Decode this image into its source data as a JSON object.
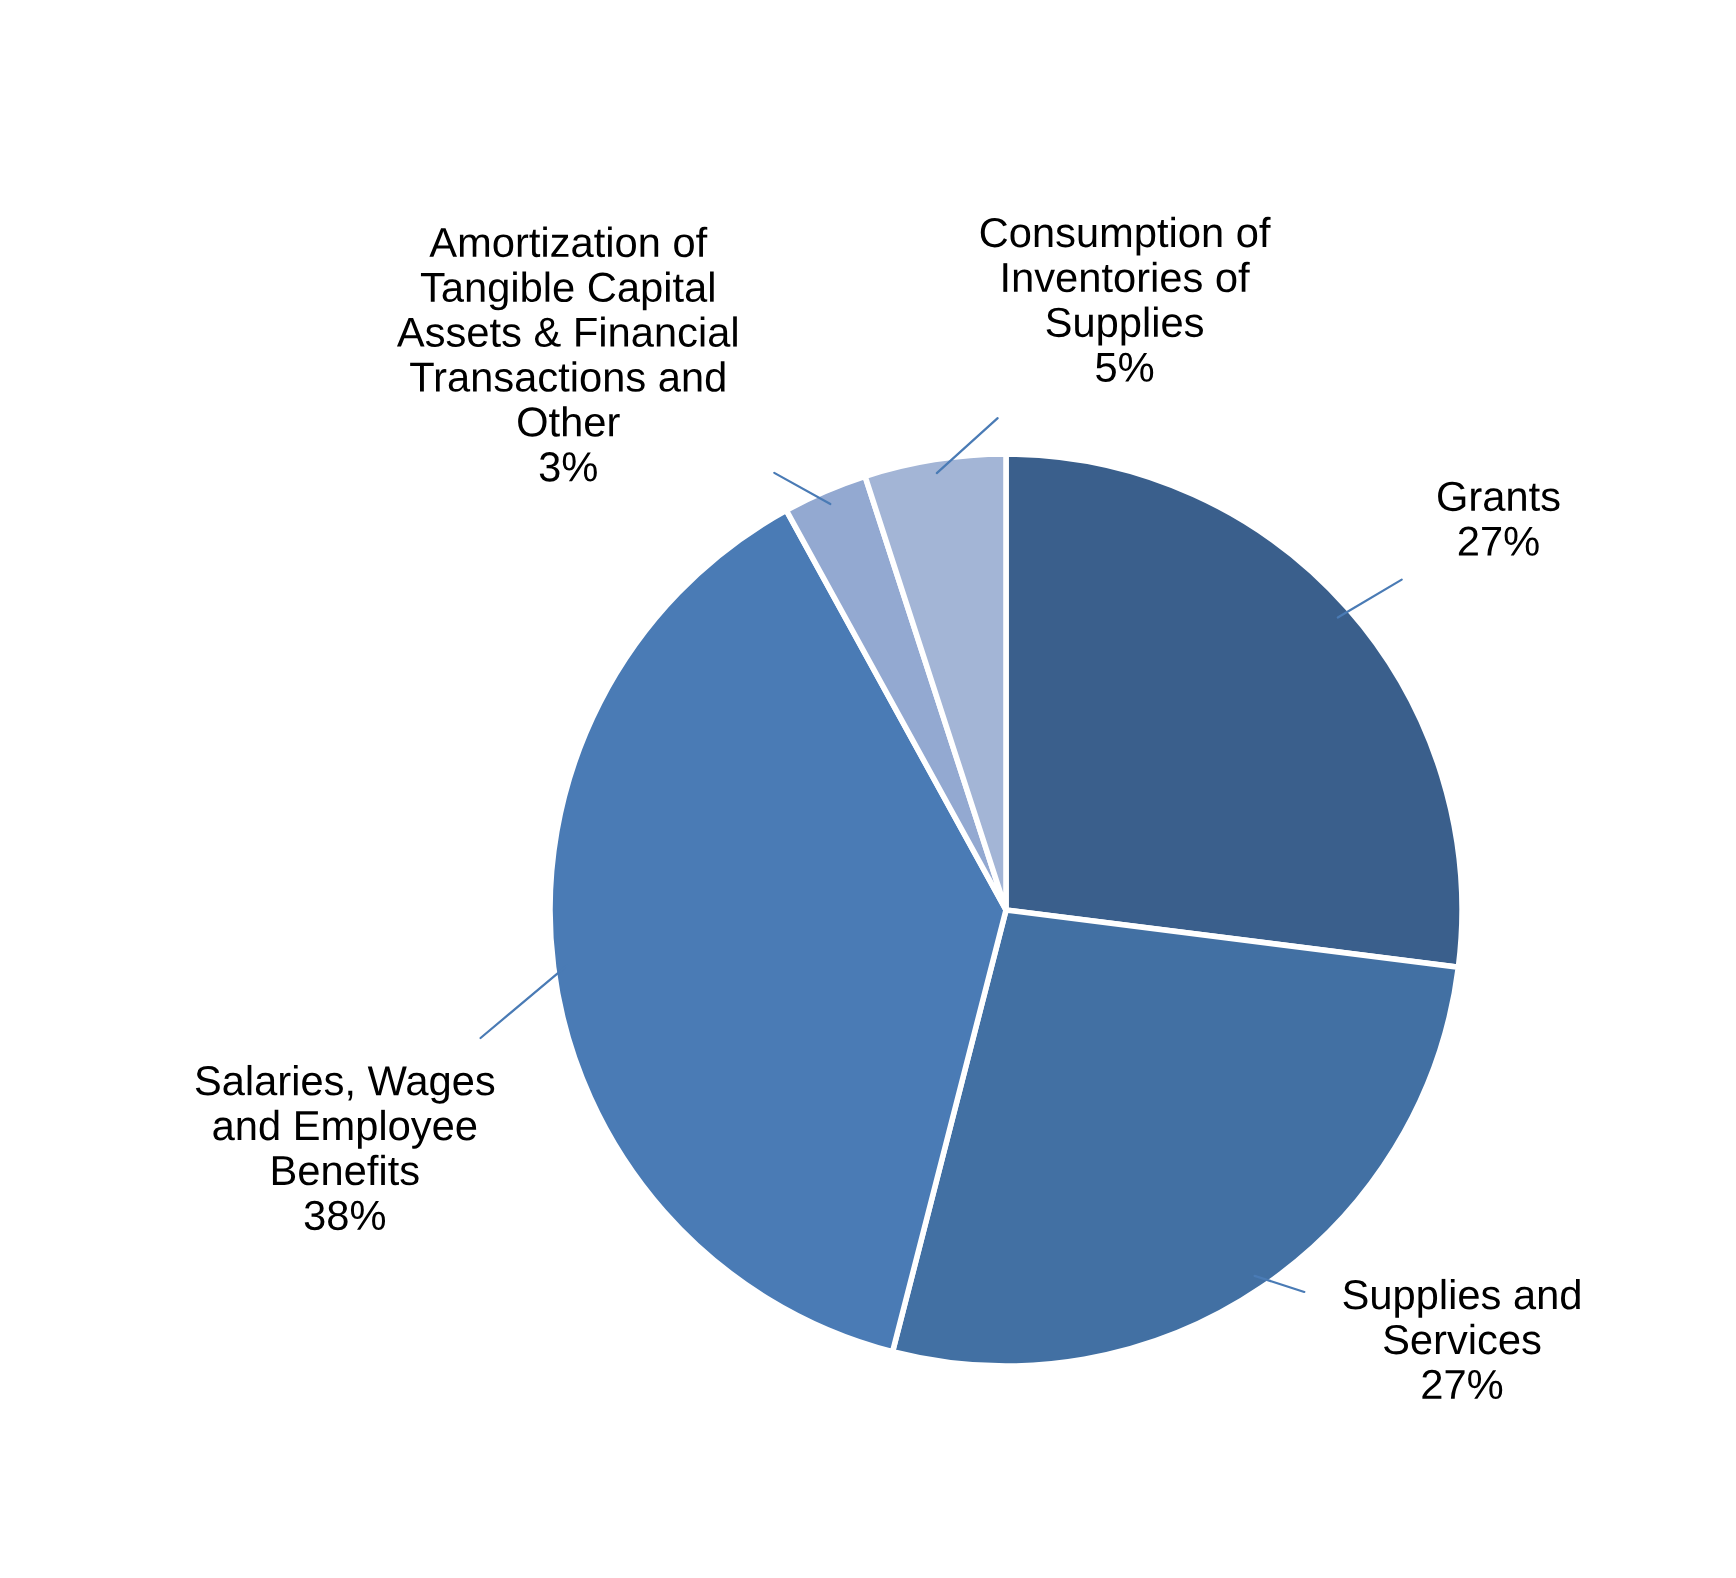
{
  "chart_data": {
    "type": "pie",
    "categories": [
      "Grants",
      "Supplies and\nServices",
      "Salaries, Wages\nand Employee\nBenefits",
      "Amortization of\nTangible Capital\nAssets & Financial\nTransactions and\nOther",
      "Consumption of\nInventories of\nSupplies"
    ],
    "values": [
      27,
      27,
      38,
      3,
      5
    ],
    "colors": [
      "#3a5f8c",
      "#4270a3",
      "#4a7bb5",
      "#93a9d1",
      "#a3b5d6"
    ],
    "value_labels": [
      "27%",
      "27%",
      "38%",
      "3%",
      "5%"
    ],
    "legend": false
  }
}
